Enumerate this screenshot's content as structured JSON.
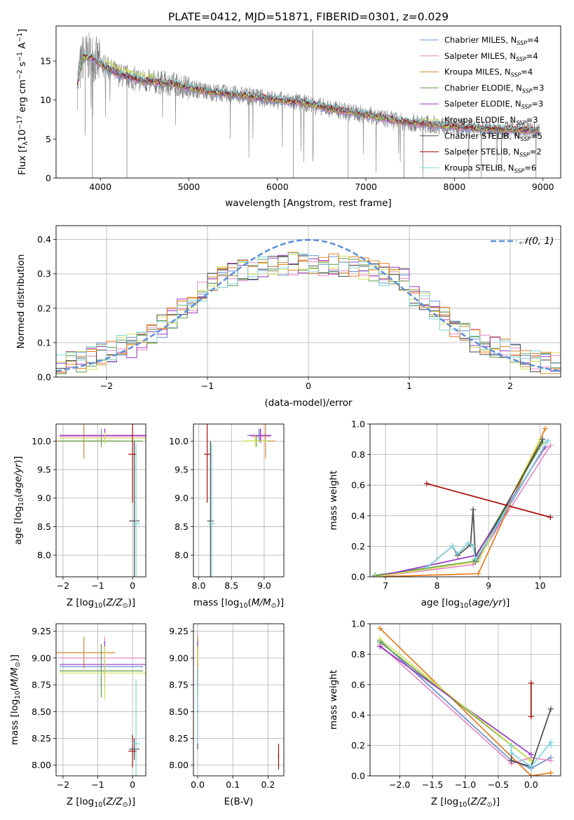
{
  "figure_title": "PLATE=0412, MJD=51871, FIBERID=0301, z=0.029",
  "legend_spectrum": [
    "Chabrier MILES, N_SSP=4",
    "Salpeter MILES, N_SSP=4",
    "Kroupa MILES, N_SSP=4",
    "Chabrier ELODIE, N_SSP=3",
    "Salpeter ELODIE, N_SSP=3",
    "Kroupa ELODIE, N_SSP=3",
    "Chabrier STELIB, N_SSP=5",
    "Salpeter STELIB, N_SSP=2",
    "Kroupa STELIB, N_SSP=6"
  ],
  "legend_hist": "𝒩(0, 1)",
  "colors": {
    "series": [
      "#6a8fd8",
      "#e98ac7",
      "#cc8a30",
      "#5f9b48",
      "#9a38c0",
      "#d2e35a",
      "#4a4a4a",
      "#a80e0e",
      "#80d4dc"
    ],
    "data": "#808080",
    "normal": "#6090d8",
    "orange": "#e87d1e",
    "grid": "#b0b0b0"
  },
  "chart_data": [
    {
      "id": "spectrum",
      "type": "line",
      "title": "PLATE=0412, MJD=51871, FIBERID=0301, z=0.029",
      "xlabel": "wavelength [Angstrom, rest frame]",
      "ylabel": "Flux [f_λ 10^-17 erg cm^-2 s^-1 A^-1]",
      "xlim": [
        3500,
        9200
      ],
      "ylim": [
        0,
        19.5
      ],
      "xticks": [
        4000,
        5000,
        6000,
        7000,
        8000,
        9000
      ],
      "yticks": [
        0,
        5,
        10,
        15
      ],
      "grid": false,
      "legend_position": "top-right",
      "data_range": [
        3740,
        8960
      ],
      "continuum": [
        [
          3740,
          12
        ],
        [
          3800,
          15.5
        ],
        [
          3900,
          15.5
        ],
        [
          4000,
          14.6
        ],
        [
          4200,
          13.3
        ],
        [
          4500,
          12.4
        ],
        [
          4800,
          12.1
        ],
        [
          5200,
          11.1
        ],
        [
          5600,
          10.6
        ],
        [
          6000,
          10.0
        ],
        [
          6300,
          9.6
        ],
        [
          6600,
          8.9
        ],
        [
          7000,
          8.1
        ],
        [
          7400,
          7.2
        ],
        [
          7800,
          6.8
        ],
        [
          8200,
          6.4
        ],
        [
          8600,
          6.2
        ],
        [
          8960,
          6.1
        ]
      ],
      "spikes": [
        [
          4300,
          0
        ],
        [
          6180,
          0
        ],
        [
          6800,
          0
        ],
        [
          7430,
          0
        ],
        [
          3910,
          0
        ],
        [
          3830,
          5.5
        ],
        [
          6400,
          19
        ]
      ]
    },
    {
      "id": "residual_hist",
      "type": "histogram",
      "xlabel": "(data-model)/error",
      "ylabel": "Normed distribution",
      "xlim": [
        -2.5,
        2.5
      ],
      "ylim": [
        0,
        0.44
      ],
      "xticks": [
        -2,
        -1,
        0,
        1,
        2
      ],
      "yticks": [
        0.0,
        0.1,
        0.2,
        0.3,
        0.4
      ],
      "bin_width": 0.1,
      "grid": true,
      "legend_position": "top-right",
      "reference": {
        "name": "𝒩(0, 1)",
        "mean": 0,
        "sigma": 1
      }
    },
    {
      "id": "age_vs_Z",
      "type": "scatter",
      "xlabel": "Z [log10(Z/Z⊙)]",
      "ylabel": "age [log10(age/yr)]",
      "xlim": [
        -2.2,
        0.38
      ],
      "ylim": [
        7.62,
        10.3
      ],
      "xticks": [
        -2,
        -1,
        0
      ],
      "yticks": [
        8.0,
        8.5,
        9.0,
        9.5,
        10.0
      ],
      "grid": true,
      "points": [
        {
          "s": 0,
          "x": -0.9,
          "y": 10.1,
          "xerr": 1.2,
          "yerr": 0.12
        },
        {
          "s": 1,
          "x": -0.8,
          "y": 10.08,
          "xerr": 1.3,
          "yerr": 0.12
        },
        {
          "s": 2,
          "x": -1.4,
          "y": 10.0,
          "xerr": 0.9,
          "yerr": 0.3
        },
        {
          "s": 3,
          "x": -0.9,
          "y": 10.0,
          "xerr": 1.2,
          "yerr": 0.1
        },
        {
          "s": 4,
          "x": -0.8,
          "y": 10.1,
          "xerr": 1.3,
          "yerr": 0.12
        },
        {
          "s": 5,
          "x": -0.8,
          "y": 10.05,
          "xerr": 1.3,
          "yerr": 0.1
        },
        {
          "s": 6,
          "x": 0.05,
          "y": 8.6,
          "xerr": 0.15,
          "yerr": 1.4
        },
        {
          "s": 7,
          "x": 0.0,
          "y": 9.77,
          "xerr": 0.12,
          "yerr": 0.85
        },
        {
          "s": 8,
          "x": 0.1,
          "y": 8.55,
          "xerr": 0.12,
          "yerr": 1.4
        }
      ]
    },
    {
      "id": "age_vs_mass",
      "type": "scatter",
      "xlabel": "mass [log10(M/M⊙)]",
      "ylabel": "",
      "xlim": [
        7.92,
        9.3
      ],
      "ylim": [
        7.62,
        10.3
      ],
      "xticks": [
        8.0,
        8.5,
        9.0
      ],
      "yticks": [
        8.0,
        8.5,
        9.0,
        9.5,
        10.0
      ],
      "grid": true,
      "points": [
        {
          "s": 0,
          "x": 8.92,
          "y": 10.1,
          "xerr": 0.18,
          "yerr": 0.12
        },
        {
          "s": 1,
          "x": 8.95,
          "y": 10.08,
          "xerr": 0.15,
          "yerr": 0.12
        },
        {
          "s": 2,
          "x": 9.02,
          "y": 10.0,
          "xerr": 0.15,
          "yerr": 0.3
        },
        {
          "s": 3,
          "x": 8.88,
          "y": 10.0,
          "xerr": 0.2,
          "yerr": 0.1
        },
        {
          "s": 4,
          "x": 8.94,
          "y": 10.1,
          "xerr": 0.17,
          "yerr": 0.12
        },
        {
          "s": 5,
          "x": 8.86,
          "y": 10.0,
          "xerr": 0.2,
          "yerr": 0.1
        },
        {
          "s": 6,
          "x": 8.18,
          "y": 8.6,
          "xerr": 0.05,
          "yerr": 1.4
        },
        {
          "s": 7,
          "x": 8.13,
          "y": 9.77,
          "xerr": 0.05,
          "yerr": 0.85
        },
        {
          "s": 8,
          "x": 8.2,
          "y": 8.55,
          "xerr": 0.05,
          "yerr": 1.4
        }
      ]
    },
    {
      "id": "mass_weight_vs_age",
      "type": "line",
      "xlabel": "age [log10(age/yr)]",
      "ylabel": "mass weight",
      "xlim": [
        6.7,
        10.4
      ],
      "ylim": [
        0,
        1.0
      ],
      "xticks": [
        7,
        8,
        9,
        10
      ],
      "yticks": [
        0.0,
        0.2,
        0.4,
        0.6,
        0.8,
        1.0
      ],
      "grid": true,
      "series": [
        {
          "s": 0,
          "x": [
            6.8,
            8.7,
            8.8,
            10.15
          ],
          "y": [
            0.005,
            0.1,
            0.12,
            0.89
          ]
        },
        {
          "s": 1,
          "x": [
            6.8,
            8.7,
            8.8,
            10.2
          ],
          "y": [
            0.0,
            0.08,
            0.12,
            0.86
          ]
        },
        {
          "s": 2,
          "x": [
            6.8,
            8.8,
            10.1
          ],
          "y": [
            0.0,
            0.02,
            0.97
          ]
        },
        {
          "s": 3,
          "x": [
            6.8,
            8.7,
            10.05
          ],
          "y": [
            0.01,
            0.1,
            0.88
          ]
        },
        {
          "s": 4,
          "x": [
            6.8,
            8.75,
            10.1
          ],
          "y": [
            0.0,
            0.14,
            0.85
          ]
        },
        {
          "s": 5,
          "x": [
            6.8,
            8.8,
            10.0
          ],
          "y": [
            0.0,
            0.1,
            0.9
          ]
        },
        {
          "s": 6,
          "x": [
            7.8,
            8.3,
            8.4,
            8.65,
            8.7,
            8.75,
            10.05
          ],
          "y": [
            0.06,
            0.2,
            0.14,
            0.21,
            0.44,
            0.1,
            0.9
          ]
        },
        {
          "s": 7,
          "x": [
            7.8,
            10.2
          ],
          "y": [
            0.61,
            0.39
          ]
        },
        {
          "s": 8,
          "x": [
            7.8,
            8.3,
            8.4,
            8.6,
            8.7,
            8.75,
            10.15
          ],
          "y": [
            0.06,
            0.2,
            0.15,
            0.22,
            0.2,
            0.11,
            0.89
          ]
        }
      ]
    },
    {
      "id": "mass_vs_Z",
      "type": "scatter",
      "xlabel": "Z [log10(Z/Z⊙)]",
      "ylabel": "mass [log10(M/M⊙)]",
      "xlim": [
        -2.2,
        0.38
      ],
      "ylim": [
        7.9,
        9.32
      ],
      "xticks": [
        -2,
        -1,
        0
      ],
      "yticks": [
        8.0,
        8.25,
        8.5,
        8.75,
        9.0,
        9.25
      ],
      "grid": true,
      "points": [
        {
          "s": 0,
          "x": -0.9,
          "y": 8.92,
          "xerr": 1.2,
          "yerr": 0.2
        },
        {
          "s": 1,
          "x": -0.8,
          "y": 9.0,
          "xerr": 1.3,
          "yerr": 0.2
        },
        {
          "s": 2,
          "x": -1.4,
          "y": 9.05,
          "xerr": 0.9,
          "yerr": 0.15
        },
        {
          "s": 3,
          "x": -0.9,
          "y": 8.88,
          "xerr": 1.2,
          "yerr": 0.25
        },
        {
          "s": 4,
          "x": -0.8,
          "y": 8.94,
          "xerr": 1.3,
          "yerr": 0.22
        },
        {
          "s": 5,
          "x": -0.8,
          "y": 8.86,
          "xerr": 1.3,
          "yerr": 0.25
        },
        {
          "s": 6,
          "x": 0.05,
          "y": 8.15,
          "xerr": 0.15,
          "yerr": 0.1
        },
        {
          "s": 7,
          "x": 0.0,
          "y": 8.13,
          "xerr": 0.12,
          "yerr": 0.15
        },
        {
          "s": 8,
          "x": 0.1,
          "y": 8.2,
          "xerr": 0.12,
          "yerr": 0.6
        }
      ]
    },
    {
      "id": "mass_vs_ebv",
      "type": "scatter",
      "xlabel": "E(B-V)",
      "ylabel": "",
      "xlim": [
        -0.012,
        0.245
      ],
      "ylim": [
        7.9,
        9.32
      ],
      "xticks": [
        0.0,
        0.1,
        0.2
      ],
      "yticks": [
        8.0,
        8.25,
        8.5,
        8.75,
        9.0,
        9.25
      ],
      "grid": true,
      "points": [
        {
          "s": 0,
          "x": 0.0,
          "y": 8.92,
          "xerr": 0.002,
          "yerr": 0.2
        },
        {
          "s": 1,
          "x": 0.0,
          "y": 9.0,
          "xerr": 0.002,
          "yerr": 0.25
        },
        {
          "s": 2,
          "x": 0.0,
          "y": 9.05,
          "xerr": 0.002,
          "yerr": 0.15
        },
        {
          "s": 3,
          "x": 0.0,
          "y": 8.88,
          "xerr": 0.002,
          "yerr": 0.25
        },
        {
          "s": 4,
          "x": 0.0,
          "y": 8.94,
          "xerr": 0.002,
          "yerr": 0.22
        },
        {
          "s": 5,
          "x": 0.0,
          "y": 8.86,
          "xerr": 0.002,
          "yerr": 0.25
        },
        {
          "s": 6,
          "x": 0.0,
          "y": 8.5,
          "xerr": 0.002,
          "yerr": 0.35
        },
        {
          "s": 7,
          "x": 0.23,
          "y": 8.08,
          "xerr": 0.002,
          "yerr": 0.12
        },
        {
          "s": 8,
          "x": 0.0,
          "y": 8.55,
          "xerr": 0.002,
          "yerr": 0.35
        }
      ]
    },
    {
      "id": "mass_weight_vs_Z",
      "type": "line",
      "xlabel": "Z [log10(Z/Z⊙)]",
      "ylabel": "mass weight",
      "xlim": [
        -2.45,
        0.45
      ],
      "ylim": [
        0,
        1.0
      ],
      "xticks": [
        -2.0,
        -1.5,
        -1.0,
        -0.5,
        0.0
      ],
      "yticks": [
        0.0,
        0.2,
        0.4,
        0.6,
        0.8,
        1.0
      ],
      "grid": true,
      "series": [
        {
          "s": 0,
          "x": [
            -2.3,
            -0.3,
            0.0,
            0.3
          ],
          "y": [
            0.89,
            0.1,
            0.05,
            0.12
          ]
        },
        {
          "s": 1,
          "x": [
            -2.3,
            -0.3,
            0.0,
            0.3
          ],
          "y": [
            0.86,
            0.08,
            0.12,
            0.1
          ]
        },
        {
          "s": 2,
          "x": [
            -2.3,
            0.0,
            0.3
          ],
          "y": [
            0.97,
            0.0,
            0.02
          ]
        },
        {
          "s": 3,
          "x": [
            -2.3,
            0.0
          ],
          "y": [
            0.88,
            0.1
          ]
        },
        {
          "s": 4,
          "x": [
            -2.3,
            0.0
          ],
          "y": [
            0.85,
            0.14
          ]
        },
        {
          "s": 5,
          "x": [
            -2.3,
            0.0
          ],
          "y": [
            0.9,
            0.1
          ]
        },
        {
          "s": 6,
          "x": [
            -0.3,
            -0.3,
            0.0,
            0.3
          ],
          "y": [
            0.2,
            0.1,
            0.06,
            0.44
          ]
        },
        {
          "s": 7,
          "x": [
            0.0,
            0.0
          ],
          "y": [
            0.61,
            0.39
          ]
        },
        {
          "s": 8,
          "x": [
            -0.3,
            -0.3,
            0.0,
            0.3,
            0.3
          ],
          "y": [
            0.2,
            0.15,
            0.06,
            0.22,
            0.2
          ]
        }
      ]
    }
  ]
}
